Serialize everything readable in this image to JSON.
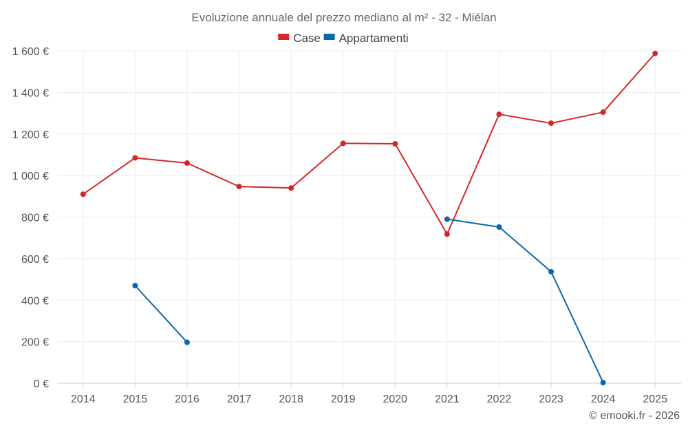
{
  "chart_data": {
    "type": "line",
    "title": "Evoluzione annuale del prezzo mediano al m² - 32 - Miélan",
    "categories": [
      "2014",
      "2015",
      "2016",
      "2017",
      "2018",
      "2019",
      "2020",
      "2021",
      "2022",
      "2023",
      "2024",
      "2025"
    ],
    "y_tick_labels": [
      "0 €",
      "200 €",
      "400 €",
      "600 €",
      "800 €",
      "1 000 €",
      "1 200 €",
      "1 400 €",
      "1 600 €"
    ],
    "y_ticks": [
      0,
      200,
      400,
      600,
      800,
      1000,
      1200,
      1400,
      1600
    ],
    "ylim": [
      0,
      1600
    ],
    "grid": true,
    "legend_position": "top-center",
    "series": [
      {
        "name": "Case",
        "color": "#d62728",
        "values": [
          910,
          1085,
          1060,
          947,
          940,
          1155,
          1153,
          718,
          1295,
          1252,
          1305,
          1588
        ]
      },
      {
        "name": "Appartamenti",
        "color": "#0868ac",
        "values": [
          null,
          470,
          197,
          null,
          null,
          null,
          null,
          790,
          752,
          537,
          3,
          null
        ]
      }
    ],
    "credit": "© emooki.fr - 2026"
  }
}
